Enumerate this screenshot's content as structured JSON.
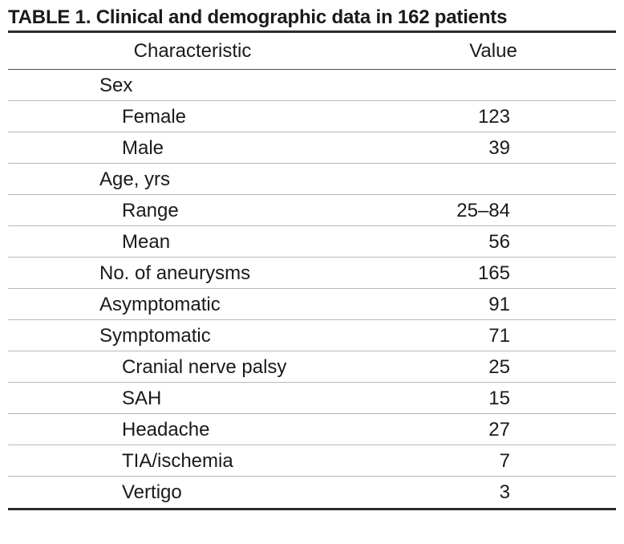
{
  "table": {
    "caption": "TABLE 1. Clinical and demographic data in 162 patients",
    "headers": {
      "characteristic": "Characteristic",
      "value": "Value"
    },
    "rows": [
      {
        "label": "Sex",
        "value": "",
        "indent": 0
      },
      {
        "label": "Female",
        "value": "123",
        "indent": 1
      },
      {
        "label": "Male",
        "value": "39",
        "indent": 1
      },
      {
        "label": "Age, yrs",
        "value": "",
        "indent": 0
      },
      {
        "label": "Range",
        "value": "25–84",
        "indent": 1
      },
      {
        "label": "Mean",
        "value": "56",
        "indent": 1
      },
      {
        "label": "No. of aneurysms",
        "value": "165",
        "indent": 0
      },
      {
        "label": "Asymptomatic",
        "value": "91",
        "indent": 0
      },
      {
        "label": "Symptomatic",
        "value": "71",
        "indent": 0
      },
      {
        "label": "Cranial nerve palsy",
        "value": "25",
        "indent": 1
      },
      {
        "label": "SAH",
        "value": "15",
        "indent": 1
      },
      {
        "label": "Headache",
        "value": "27",
        "indent": 1
      },
      {
        "label": "TIA/ischemia",
        "value": "7",
        "indent": 1
      },
      {
        "label": "Vertigo",
        "value": "3",
        "indent": 1
      }
    ]
  }
}
